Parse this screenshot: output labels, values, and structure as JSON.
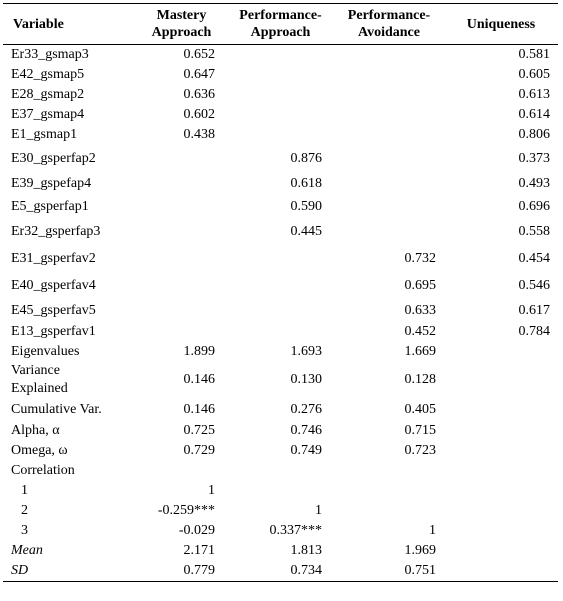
{
  "table": {
    "headers": {
      "variable": "Variable",
      "mastery": [
        "Mastery",
        "Approach"
      ],
      "perf_approach": [
        "Performance-",
        "Approach"
      ],
      "perf_avoidance": [
        "Performance-",
        "Avoidance"
      ],
      "uniqueness": "Uniqueness"
    },
    "loadings": [
      {
        "name": "Er33_gsmap3",
        "mastery": "0.652",
        "perf_approach": "",
        "perf_avoidance": "",
        "uniqueness": "0.581"
      },
      {
        "name": "E42_gsmap5",
        "mastery": "0.647",
        "perf_approach": "",
        "perf_avoidance": "",
        "uniqueness": "0.605"
      },
      {
        "name": "E28_gsmap2",
        "mastery": "0.636",
        "perf_approach": "",
        "perf_avoidance": "",
        "uniqueness": "0.613"
      },
      {
        "name": "E37_gsmap4",
        "mastery": "0.602",
        "perf_approach": "",
        "perf_avoidance": "",
        "uniqueness": "0.614"
      },
      {
        "name": "E1_gsmap1",
        "mastery": "0.438",
        "perf_approach": "",
        "perf_avoidance": "",
        "uniqueness": "0.806"
      },
      {
        "name": "E30_gsperfap2",
        "mastery": "",
        "perf_approach": "0.876",
        "perf_avoidance": "",
        "uniqueness": "0.373"
      },
      {
        "name": "E39_gspefap4",
        "mastery": "",
        "perf_approach": "0.618",
        "perf_avoidance": "",
        "uniqueness": "0.493"
      },
      {
        "name": "E5_gsperfap1",
        "mastery": "",
        "perf_approach": "0.590",
        "perf_avoidance": "",
        "uniqueness": "0.696"
      },
      {
        "name": "Er32_gsperfap3",
        "mastery": "",
        "perf_approach": "0.445",
        "perf_avoidance": "",
        "uniqueness": "0.558"
      },
      {
        "name": "E31_gsperfav2",
        "mastery": "",
        "perf_approach": "",
        "perf_avoidance": "0.732",
        "uniqueness": "0.454"
      },
      {
        "name": "E40_gsperfav4",
        "mastery": "",
        "perf_approach": "",
        "perf_avoidance": "0.695",
        "uniqueness": "0.546"
      },
      {
        "name": "E45_gsperfav5",
        "mastery": "",
        "perf_approach": "",
        "perf_avoidance": "0.633",
        "uniqueness": "0.617"
      },
      {
        "name": "E13_gsperfav1",
        "mastery": "",
        "perf_approach": "",
        "perf_avoidance": "0.452",
        "uniqueness": "0.784"
      }
    ],
    "stats": {
      "eigenvalues": {
        "label": "Eigenvalues",
        "values": [
          "1.899",
          "1.693",
          "1.669"
        ]
      },
      "variance": {
        "label": [
          "Variance",
          "Explained"
        ],
        "values": [
          "0.146",
          "0.130",
          "0.128"
        ]
      },
      "cumulative": {
        "label": "Cumulative Var.",
        "values": [
          "0.146",
          "0.276",
          "0.405"
        ]
      },
      "alpha": {
        "label": "Alpha, α",
        "values": [
          "0.725",
          "0.746",
          "0.715"
        ]
      },
      "omega": {
        "label": "Omega, ω",
        "values": [
          "0.729",
          "0.749",
          "0.723"
        ]
      }
    },
    "correlation": {
      "label": "Correlation",
      "rows": [
        {
          "label": "1",
          "values": [
            "1",
            "",
            ""
          ]
        },
        {
          "label": "2",
          "values": [
            "-0.259***",
            "1",
            ""
          ]
        },
        {
          "label": "3",
          "values": [
            "-0.029",
            "0.337***",
            "1"
          ]
        }
      ]
    },
    "mean": {
      "label": "Mean",
      "values": [
        "2.171",
        "1.813",
        "1.969"
      ]
    },
    "sd": {
      "label": "SD",
      "values": [
        "0.779",
        "0.734",
        "0.751"
      ]
    }
  }
}
